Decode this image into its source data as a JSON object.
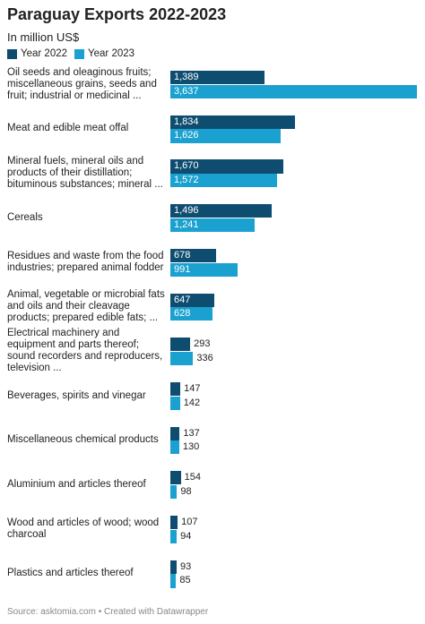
{
  "chart_data": {
    "type": "bar",
    "orientation": "horizontal",
    "title": "Paraguay Exports 2022-2023",
    "subtitle": "In million US$",
    "categories": [
      "Oil seeds and oleaginous fruits; miscellaneous grains, seeds and fruit; industrial or medicinal ...",
      "Meat and edible meat offal",
      "Mineral fuels, mineral oils and products of their distillation; bituminous substances; mineral ...",
      "Cereals",
      "Residues and waste from the food industries; prepared animal fodder",
      "Animal, vegetable or microbial fats and oils and their cleavage products; prepared edible fats; ...",
      "Electrical machinery and equipment and parts thereof; sound recorders and reproducers, television ...",
      "Beverages, spirits and vinegar",
      "Miscellaneous chemical products",
      "Aluminium and articles thereof",
      "Wood and articles of wood; wood charcoal",
      "Plastics and articles thereof"
    ],
    "series": [
      {
        "name": "Year 2022",
        "color": "#0e4d70",
        "values": [
          1389,
          1834,
          1670,
          1496,
          678,
          647,
          293,
          147,
          137,
          154,
          107,
          93
        ],
        "value_labels": [
          "1,389",
          "1,834",
          "1,670",
          "1,496",
          "678",
          "647",
          "293",
          "147",
          "137",
          "154",
          "107",
          "93"
        ]
      },
      {
        "name": "Year 2023",
        "color": "#1aa1d0",
        "values": [
          3637,
          1626,
          1572,
          1241,
          991,
          628,
          336,
          142,
          130,
          98,
          94,
          85
        ],
        "value_labels": [
          "3,637",
          "1,626",
          "1,572",
          "1,241",
          "991",
          "628",
          "336",
          "142",
          "130",
          "98",
          "94",
          "85"
        ]
      }
    ],
    "source": "Source: asktomia.com • Created with Datawrapper"
  }
}
